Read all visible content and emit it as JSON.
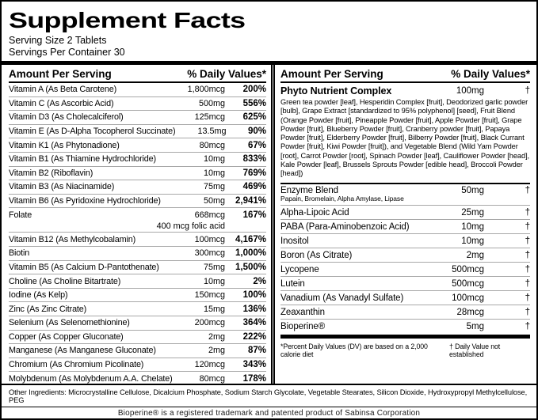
{
  "label": {
    "title": "Supplement Facts",
    "serving_size": "Serving Size 2 Tablets",
    "servings_per_container": "Servings Per Container 30"
  },
  "table_header": {
    "amount": "Amount Per Serving",
    "dv": "% Daily Values*"
  },
  "left_column": {
    "rows": [
      {
        "name": "Vitamin A (As Beta Carotene)",
        "amount": "1,800mcg",
        "dv": "200%"
      },
      {
        "name": "Vitamin C (As Ascorbic Acid)",
        "amount": "500mg",
        "dv": "556%"
      },
      {
        "name": "Vitamin D3 (As Cholecalciferol)",
        "amount": "125mcg",
        "dv": "625%"
      },
      {
        "name": "Vitamin E (As D-Alpha Tocopherol Succinate)",
        "amount": "13.5mg",
        "dv": "90%"
      },
      {
        "name": "Vitamin K1 (As Phytonadione)",
        "amount": "80mcg",
        "dv": "67%"
      },
      {
        "name": "Vitamin B1 (As Thiamine Hydrochloride)",
        "amount": "10mg",
        "dv": "833%"
      },
      {
        "name": "Vitamin B2 (Riboflavin)",
        "amount": "10mg",
        "dv": "769%"
      },
      {
        "name": "Vitamin B3 (As Niacinamide)",
        "amount": "75mg",
        "dv": "469%"
      },
      {
        "name": "Vitamin B6 (As Pyridoxine Hydrochloride)",
        "amount": "50mg",
        "dv": "2,941%"
      },
      {
        "name": "Folate",
        "amount": "668mcg",
        "dv": "167%",
        "sub": "400 mcg folic acid"
      },
      {
        "name": "Vitamin B12 (As Methylcobalamin)",
        "amount": "100mcg",
        "dv": "4,167%"
      },
      {
        "name": "Biotin",
        "amount": "300mcg",
        "dv": "1,000%"
      },
      {
        "name": "Vitamin B5 (As Calcium D-Pantothenate)",
        "amount": "75mg",
        "dv": "1,500%"
      },
      {
        "name": "Choline (As Choline Bitartrate)",
        "amount": "10mg",
        "dv": "2%"
      },
      {
        "name": "Iodine (As Kelp)",
        "amount": "150mcg",
        "dv": "100%"
      },
      {
        "name": "Zinc (As Zinc Citrate)",
        "amount": "15mg",
        "dv": "136%"
      },
      {
        "name": "Selenium (As Selenomethionine)",
        "amount": "200mcg",
        "dv": "364%"
      },
      {
        "name": "Copper (As Copper Gluconate)",
        "amount": "2mg",
        "dv": "222%"
      },
      {
        "name": "Manganese (As Manganese Gluconate)",
        "amount": "2mg",
        "dv": "87%"
      },
      {
        "name": "Chromium (As Chromium Picolinate)",
        "amount": "120mcg",
        "dv": "343%"
      },
      {
        "name": "Molybdenum (As Molybdenum A.A. Chelate)",
        "amount": "80mcg",
        "dv": "178%"
      }
    ]
  },
  "right_column": {
    "complex": {
      "name": "Phyto Nutrient Complex",
      "amount": "100mg",
      "dv": "†",
      "description": "Green tea powder [leaf], Hesperidin Complex [fruit], Deodorized garlic powder [bulb], Grape Extract [standardized to 95% polyphenol] [seed], Fruit Blend (Orange Powder [fruit], Pineapple Powder [fruit], Apple Powder [fruit], Grape Powder [fruit], Blueberry Powder [fruit], Cranberry powder [fruit], Papaya Powder [fruit], Elderberry Powder [fruit], Bilberry Powder [fruit], Black Currant Powder [fruit], Kiwi Powder [fruit]), and Vegetable Blend (Wild Yam Powder [root], Carrot Powder [root], Spinach Powder [leaf], Cauliflower Powder [head], Kale Powder [leaf], Brussels Sprouts Powder [edible head], Broccoli Powder [head])"
    },
    "rows": [
      {
        "name": "Enzyme Blend",
        "amount": "50mg",
        "dv": "†",
        "sub": "Papain, Bromelain, Alpha Amylase, Lipase"
      },
      {
        "name": "Alpha-Lipoic Acid",
        "amount": "25mg",
        "dv": "†"
      },
      {
        "name": "PABA (Para-Aminobenzoic Acid)",
        "amount": "10mg",
        "dv": "†"
      },
      {
        "name": "Inositol",
        "amount": "10mg",
        "dv": "†"
      },
      {
        "name": "Boron (As Citrate)",
        "amount": "2mg",
        "dv": "†"
      },
      {
        "name": "Lycopene",
        "amount": "500mcg",
        "dv": "†"
      },
      {
        "name": "Lutein",
        "amount": "500mcg",
        "dv": "†"
      },
      {
        "name": "Vanadium (As Vanadyl Sulfate)",
        "amount": "100mcg",
        "dv": "†"
      },
      {
        "name": "Zeaxanthin",
        "amount": "28mcg",
        "dv": "†"
      },
      {
        "name": "Bioperine®",
        "amount": "5mg",
        "dv": "†"
      }
    ],
    "footnotes": {
      "dv_note": "*Percent Daily Values (DV) are based on a 2,000 calorie diet",
      "dagger_note": "† Daily Value not established"
    }
  },
  "footer": {
    "other_ingredients": "Other Ingredients: Microcrystalline Cellulose, Dicalcium Phosphate, Sodium Starch Glycolate, Vegetable Stearates, Silicon Dioxide, Hydroxypropyl Methylcellulose, PEG",
    "trademark": "Bioperine® is a registered trademark and patented product of Sabinsa Corporation"
  },
  "colors": {
    "background": "#ffffff",
    "text": "#000000",
    "separator": "#a8a8a8",
    "bar": "#000000"
  }
}
